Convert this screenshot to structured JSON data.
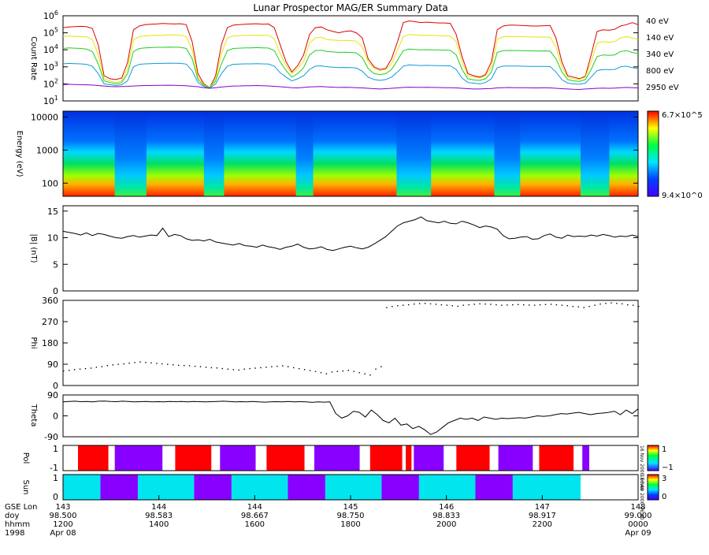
{
  "title": "Lunar Prospector MAG/ER Summary Data",
  "colors": {
    "ch40": "#dd0000",
    "ch140": "#e6e600",
    "ch340": "#22cc22",
    "ch800": "#1199dd",
    "ch2950": "#8800cc",
    "red": "#ff0000",
    "purple": "#8800ff",
    "cyan": "#00e5ee",
    "white": "#ffffff",
    "line": "#000000"
  },
  "chart_data": [
    {
      "type": "line",
      "ylabel": "Count Rate",
      "yscale": "log",
      "ylim": [
        10,
        1000000
      ],
      "yticks": [
        "10^1",
        "10^2",
        "10^3",
        "10^4",
        "10^5",
        "10^6"
      ],
      "series": [
        {
          "name": "40 eV",
          "color_key": "ch40",
          "values": [
            200000,
            220000,
            230000,
            240000,
            230000,
            180000,
            20000,
            300,
            200,
            180,
            220,
            1800,
            150000,
            250000,
            300000,
            320000,
            330000,
            350000,
            340000,
            330000,
            340000,
            300000,
            30000,
            400,
            100,
            60,
            300,
            20000,
            200000,
            280000,
            300000,
            320000,
            330000,
            340000,
            320000,
            330000,
            200000,
            20000,
            2000,
            500,
            1200,
            5000,
            80000,
            200000,
            220000,
            150000,
            120000,
            100000,
            120000,
            130000,
            100000,
            50000,
            3000,
            1000,
            700,
            800,
            3000,
            30000,
            400000,
            500000,
            450000,
            400000,
            420000,
            400000,
            380000,
            380000,
            360000,
            80000,
            4000,
            400,
            300,
            250,
            350,
            2000,
            150000,
            250000,
            280000,
            280000,
            270000,
            260000,
            250000,
            250000,
            260000,
            270000,
            50000,
            2000,
            300,
            250,
            200,
            280,
            5000,
            120000,
            150000,
            140000,
            160000,
            250000,
            300000,
            400000,
            300000
          ]
        },
        {
          "name": "140 eV",
          "color_key": "ch140",
          "values": [
            60000,
            65000,
            62000,
            60000,
            58000,
            40000,
            5000,
            200,
            150,
            120,
            150,
            800,
            40000,
            60000,
            65000,
            70000,
            72000,
            70000,
            75000,
            74000,
            72000,
            60000,
            10000,
            250,
            90,
            60,
            200,
            6000,
            50000,
            65000,
            68000,
            70000,
            72000,
            73000,
            72000,
            71000,
            45000,
            6000,
            1200,
            400,
            800,
            2000,
            25000,
            50000,
            55000,
            40000,
            38000,
            35000,
            36000,
            35000,
            32000,
            15000,
            2000,
            800,
            600,
            700,
            1500,
            10000,
            60000,
            80000,
            75000,
            70000,
            72000,
            70000,
            68000,
            66000,
            65000,
            30000,
            2000,
            300,
            250,
            220,
            300,
            1000,
            40000,
            60000,
            62000,
            61000,
            60000,
            58000,
            57000,
            56000,
            57000,
            55000,
            15000,
            1000,
            250,
            200,
            180,
            250,
            2000,
            25000,
            30000,
            28000,
            30000,
            50000,
            60000,
            50000,
            40000
          ]
        },
        {
          "name": "340 eV",
          "color_key": "ch340",
          "values": [
            12000,
            13000,
            12500,
            12000,
            11000,
            8000,
            1500,
            150,
            120,
            100,
            120,
            400,
            8000,
            12000,
            13000,
            13500,
            14000,
            14000,
            14500,
            14200,
            14000,
            12000,
            3000,
            180,
            80,
            60,
            150,
            1500,
            9000,
            12000,
            12500,
            13000,
            13000,
            13500,
            13000,
            12800,
            9000,
            2000,
            600,
            250,
            400,
            900,
            5000,
            9000,
            9500,
            8000,
            7500,
            7000,
            7200,
            7000,
            6500,
            3500,
            800,
            400,
            350,
            400,
            700,
            2500,
            9000,
            11000,
            10500,
            10000,
            10200,
            10000,
            9800,
            9600,
            9500,
            5000,
            700,
            200,
            170,
            160,
            200,
            500,
            7000,
            9000,
            9200,
            9100,
            9000,
            8800,
            8600,
            8500,
            8600,
            8400,
            3000,
            500,
            180,
            150,
            140,
            180,
            700,
            4000,
            5000,
            4800,
            5000,
            8000,
            9000,
            7000,
            6000
          ]
        },
        {
          "name": "800 eV",
          "color_key": "ch800",
          "values": [
            1500,
            1600,
            1550,
            1500,
            1400,
            1100,
            400,
            100,
            90,
            80,
            90,
            150,
            1000,
            1400,
            1500,
            1550,
            1600,
            1600,
            1650,
            1620,
            1600,
            1450,
            600,
            120,
            70,
            55,
            100,
            400,
            1100,
            1400,
            1450,
            1500,
            1500,
            1550,
            1500,
            1480,
            1100,
            450,
            250,
            150,
            200,
            300,
            700,
            1100,
            1150,
            1000,
            950,
            900,
            920,
            900,
            850,
            550,
            250,
            180,
            160,
            180,
            250,
            500,
            1100,
            1300,
            1250,
            1200,
            1220,
            1200,
            1180,
            1160,
            1150,
            700,
            220,
            120,
            110,
            100,
            120,
            200,
            900,
            1100,
            1120,
            1110,
            1100,
            1080,
            1060,
            1050,
            1060,
            1040,
            500,
            180,
            110,
            100,
            95,
            110,
            250,
            600,
            700,
            680,
            700,
            1000,
            1100,
            900,
            800
          ]
        },
        {
          "name": "2950 eV",
          "color_key": "ch2950",
          "values": [
            90,
            95,
            92,
            90,
            88,
            85,
            80,
            75,
            70,
            68,
            70,
            72,
            75,
            78,
            80,
            80,
            82,
            82,
            83,
            82,
            80,
            78,
            72,
            68,
            60,
            55,
            60,
            65,
            70,
            75,
            76,
            78,
            78,
            80,
            78,
            76,
            72,
            68,
            64,
            60,
            58,
            62,
            66,
            68,
            70,
            66,
            64,
            62,
            63,
            62,
            60,
            58,
            55,
            52,
            50,
            52,
            55,
            58,
            62,
            64,
            63,
            62,
            63,
            62,
            61,
            60,
            60,
            58,
            55,
            52,
            50,
            50,
            52,
            54,
            58,
            60,
            61,
            60,
            60,
            59,
            58,
            58,
            59,
            58,
            55,
            52,
            50,
            48,
            47,
            50,
            52,
            55,
            56,
            55,
            56,
            60,
            62,
            60,
            58
          ]
        }
      ]
    },
    {
      "type": "heatmap",
      "ylabel": "Energy (eV)",
      "yscale": "log",
      "ylim": [
        40,
        15000
      ],
      "yticks": [
        "100",
        "1000",
        "10000"
      ],
      "colorbar": {
        "max": "6.7×10^5",
        "min": "9.4×10^0"
      }
    },
    {
      "type": "line",
      "ylabel": "|B| (nT)",
      "ylim": [
        0,
        16
      ],
      "yticks": [
        "0",
        "5",
        "10",
        "15"
      ],
      "values": [
        11.2,
        11,
        10.8,
        10.5,
        10.9,
        10.4,
        10.8,
        10.6,
        10.3,
        10,
        9.9,
        10.2,
        10.4,
        10.1,
        10.3,
        10.5,
        10.4,
        11.8,
        10.2,
        10.6,
        10.4,
        9.8,
        9.5,
        9.6,
        9.4,
        9.7,
        9.2,
        9,
        8.8,
        8.6,
        8.9,
        8.5,
        8.4,
        8.2,
        8.6,
        8.3,
        8.1,
        7.8,
        8.2,
        8.4,
        8.8,
        8.2,
        7.9,
        8,
        8.3,
        7.8,
        7.6,
        7.9,
        8.2,
        8.4,
        8.1,
        7.9,
        8.2,
        8.8,
        9.5,
        10.2,
        11.2,
        12.2,
        12.8,
        13.1,
        13.4,
        13.9,
        13.2,
        13,
        12.8,
        13.1,
        12.7,
        12.6,
        13.1,
        12.8,
        12.4,
        11.9,
        12.2,
        12,
        11.6,
        10.4,
        9.8,
        9.9,
        10.1,
        10.2,
        9.7,
        9.8,
        10.4,
        10.7,
        10.1,
        9.9,
        10.5,
        10.2,
        10.3,
        10.2,
        10.5,
        10.3,
        10.6,
        10.4,
        10.1,
        10.3,
        10.2,
        10.5,
        10.2
      ]
    },
    {
      "type": "scatter",
      "ylabel": "Phi",
      "ylim": [
        0,
        360
      ],
      "yticks": [
        "0",
        "90",
        "180",
        "270",
        "360"
      ],
      "values": [
        62,
        65,
        68,
        70,
        72,
        74,
        78,
        80,
        85,
        88,
        90,
        92,
        95,
        98,
        100,
        98,
        96,
        94,
        92,
        90,
        88,
        86,
        85,
        84,
        82,
        80,
        78,
        76,
        75,
        72,
        70,
        68,
        66,
        70,
        72,
        74,
        76,
        78,
        80,
        82,
        84,
        80,
        76,
        72,
        68,
        64,
        60,
        55,
        50,
        58,
        60,
        62,
        65,
        60,
        55,
        50,
        45,
        70,
        80,
        330,
        335,
        338,
        340,
        342,
        345,
        347,
        348,
        346,
        344,
        342,
        340,
        338,
        336,
        340,
        342,
        344,
        346,
        345,
        344,
        342,
        340,
        341,
        342,
        343,
        342,
        341,
        340,
        342,
        343,
        344,
        342,
        340,
        338,
        335,
        333,
        330,
        335,
        340,
        345,
        348,
        350,
        348,
        346,
        342,
        340,
        335
      ]
    },
    {
      "type": "line",
      "ylabel": "Theta",
      "ylim": [
        -90,
        90
      ],
      "yticks": [
        "-90",
        "0",
        "90"
      ],
      "values": [
        60,
        62,
        63,
        61,
        62,
        60,
        63,
        64,
        62,
        61,
        63,
        62,
        60,
        61,
        62,
        60,
        61,
        60,
        62,
        61,
        62,
        60,
        62,
        61,
        60,
        61,
        62,
        63,
        62,
        60,
        61,
        60,
        62,
        60,
        59,
        60,
        61,
        60,
        62,
        60,
        61,
        60,
        58,
        60,
        59,
        60,
        10,
        -10,
        0,
        20,
        15,
        -5,
        25,
        5,
        -20,
        -30,
        -10,
        -40,
        -35,
        -55,
        -45,
        -60,
        -80,
        -70,
        -50,
        -30,
        -20,
        -10,
        -15,
        -10,
        -20,
        -5,
        -10,
        -15,
        -10,
        -12,
        -10,
        -8,
        -10,
        -5,
        0,
        -2,
        0,
        5,
        10,
        8,
        12,
        15,
        10,
        5,
        10,
        12,
        15,
        20,
        5,
        25,
        10,
        30
      ]
    },
    {
      "type": "bar",
      "ylabel": "Pol",
      "colorbar": {
        "max": "1",
        "min": "−1"
      },
      "vertical_label": "16 Nov 2000 16:40",
      "segments": [
        [
          "white",
          0.026
        ],
        [
          "red",
          0.053
        ],
        [
          "white",
          0.011
        ],
        [
          "purple",
          0.083
        ],
        [
          "white",
          0.022
        ],
        [
          "red",
          0.063
        ],
        [
          "white",
          0.015
        ],
        [
          "purple",
          0.062
        ],
        [
          "white",
          0.019
        ],
        [
          "red",
          0.066
        ],
        [
          "white",
          0.017
        ],
        [
          "purple",
          0.079
        ],
        [
          "white",
          0.018
        ],
        [
          "red",
          0.056
        ],
        [
          "white",
          0.006
        ],
        [
          "red",
          0.01
        ],
        [
          "white",
          0.004
        ],
        [
          "purple",
          0.052
        ],
        [
          "white",
          0.022
        ],
        [
          "red",
          0.058
        ],
        [
          "white",
          0.015
        ],
        [
          "purple",
          0.06
        ],
        [
          "white",
          0.011
        ],
        [
          "red",
          0.06
        ],
        [
          "white",
          0.015
        ],
        [
          "purple",
          0.012
        ]
      ]
    },
    {
      "type": "bar",
      "ylabel": "Sun",
      "colorbar": {
        "max": "3",
        "min": "0"
      },
      "vertical_label": "16 Nov 2000 16:40",
      "segments": [
        [
          "cyan",
          0.065
        ],
        [
          "purple",
          0.065
        ],
        [
          "cyan",
          0.098
        ],
        [
          "purple",
          0.065
        ],
        [
          "cyan",
          0.098
        ],
        [
          "purple",
          0.065
        ],
        [
          "cyan",
          0.098
        ],
        [
          "purple",
          0.065
        ],
        [
          "cyan",
          0.098
        ],
        [
          "purple",
          0.065
        ],
        [
          "cyan",
          0.118
        ]
      ]
    }
  ],
  "xaxis": {
    "row_labels": [
      "GSE Lon",
      "doy",
      "hhmm",
      "1998"
    ],
    "ticks": [
      [
        "143",
        "98.500",
        "1200",
        "Apr 08"
      ],
      [
        "144",
        "98.583",
        "1400",
        ""
      ],
      [
        "144",
        "98.667",
        "1600",
        ""
      ],
      [
        "145",
        "98.750",
        "1800",
        ""
      ],
      [
        "146",
        "98.833",
        "2000",
        ""
      ],
      [
        "147",
        "98.917",
        "2200",
        ""
      ],
      [
        "148",
        "99.000",
        "0000",
        "Apr 09"
      ]
    ]
  }
}
